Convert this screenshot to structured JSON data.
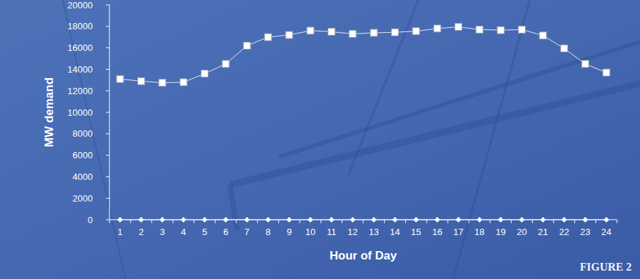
{
  "chart_data": {
    "type": "line",
    "x_label": "Hour of Day",
    "y_label": "MW demand",
    "annotation": "FIGURE 2",
    "categories": [
      "1",
      "2",
      "3",
      "4",
      "5",
      "6",
      "7",
      "8",
      "9",
      "10",
      "11",
      "12",
      "13",
      "14",
      "15",
      "16",
      "17",
      "18",
      "19",
      "20",
      "21",
      "22",
      "23",
      "24"
    ],
    "series": [
      {
        "color": "#ffffff",
        "marker": "square",
        "line_style": "solid",
        "values": [
          13100,
          12900,
          12750,
          12800,
          13600,
          14500,
          16200,
          17000,
          17200,
          17600,
          17500,
          17300,
          17400,
          17450,
          17550,
          17800,
          17950,
          17700,
          17650,
          17700,
          17150,
          15950,
          14500,
          13700
        ]
      },
      {
        "color": "#ffffff",
        "marker": "diamond",
        "line_style": "solid",
        "values": [
          0,
          0,
          0,
          0,
          0,
          0,
          0,
          0,
          0,
          0,
          0,
          0,
          0,
          0,
          0,
          0,
          0,
          0,
          0,
          0,
          0,
          0,
          0,
          0
        ]
      }
    ],
    "ylim": [
      0,
      20000
    ],
    "yticks": [
      0,
      2000,
      4000,
      6000,
      8000,
      10000,
      12000,
      14000,
      16000,
      18000,
      20000
    ],
    "grid": false
  }
}
